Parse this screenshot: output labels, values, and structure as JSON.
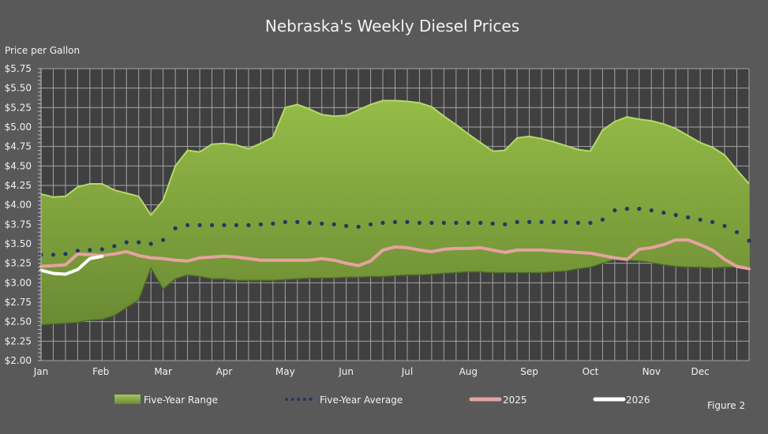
{
  "chart_data": {
    "type": "area",
    "title": "Nebraska's Weekly Diesel Prices",
    "ylabel": "Price per Gallon",
    "xlabel": "",
    "figure_label": "Figure 2",
    "ylim": [
      2.0,
      5.75
    ],
    "ytick_step": 0.25,
    "grid": true,
    "legend_position": "bottom",
    "x_unit": "week",
    "month_ticks": [
      {
        "label": "Jan",
        "week": 1
      },
      {
        "label": "Feb",
        "week": 5.9
      },
      {
        "label": "Mar",
        "week": 11
      },
      {
        "label": "Apr",
        "week": 16
      },
      {
        "label": "May",
        "week": 21
      },
      {
        "label": "Jun",
        "week": 26
      },
      {
        "label": "Jul",
        "week": 31
      },
      {
        "label": "Aug",
        "week": 36
      },
      {
        "label": "Sep",
        "week": 41
      },
      {
        "label": "Oct",
        "week": 46
      },
      {
        "label": "Nov",
        "week": 51
      },
      {
        "label": "Dec",
        "week": 55
      }
    ],
    "series": [
      {
        "name": "Five-Year Range",
        "kind": "range",
        "color": "#86ac3f",
        "high": [
          4.14,
          4.1,
          4.11,
          4.23,
          4.27,
          4.27,
          4.19,
          4.15,
          4.11,
          3.87,
          4.06,
          4.5,
          4.7,
          4.68,
          4.78,
          4.79,
          4.77,
          4.72,
          4.79,
          4.87,
          5.25,
          5.29,
          5.23,
          5.16,
          5.14,
          5.15,
          5.22,
          5.29,
          5.34,
          5.34,
          5.33,
          5.31,
          5.26,
          5.14,
          5.03,
          4.91,
          4.8,
          4.69,
          4.7,
          4.86,
          4.88,
          4.85,
          4.81,
          4.76,
          4.71,
          4.69,
          4.96,
          5.07,
          5.13,
          5.1,
          5.08,
          5.04,
          4.98,
          4.89,
          4.8,
          4.74,
          4.64,
          4.45,
          4.27
        ],
        "low": [
          2.46,
          2.47,
          2.48,
          2.49,
          2.52,
          2.53,
          2.58,
          2.68,
          2.78,
          3.19,
          2.92,
          3.05,
          3.1,
          3.08,
          3.05,
          3.05,
          3.03,
          3.03,
          3.03,
          3.03,
          3.04,
          3.05,
          3.06,
          3.06,
          3.06,
          3.07,
          3.07,
          3.08,
          3.08,
          3.09,
          3.1,
          3.1,
          3.11,
          3.12,
          3.13,
          3.14,
          3.14,
          3.13,
          3.13,
          3.13,
          3.13,
          3.13,
          3.14,
          3.15,
          3.18,
          3.2,
          3.25,
          3.3,
          3.29,
          3.28,
          3.26,
          3.23,
          3.21,
          3.2,
          3.2,
          3.19,
          3.2,
          3.2,
          3.2
        ]
      },
      {
        "name": "Five-Year Average",
        "kind": "dotted",
        "color": "#1f3a5f",
        "values": [
          3.36,
          3.36,
          3.37,
          3.41,
          3.42,
          3.43,
          3.47,
          3.52,
          3.52,
          3.5,
          3.55,
          3.7,
          3.74,
          3.74,
          3.74,
          3.74,
          3.74,
          3.74,
          3.75,
          3.76,
          3.78,
          3.78,
          3.77,
          3.76,
          3.75,
          3.73,
          3.72,
          3.75,
          3.77,
          3.78,
          3.78,
          3.77,
          3.77,
          3.77,
          3.77,
          3.77,
          3.77,
          3.76,
          3.75,
          3.78,
          3.78,
          3.78,
          3.78,
          3.78,
          3.77,
          3.77,
          3.81,
          3.93,
          3.95,
          3.95,
          3.93,
          3.9,
          3.87,
          3.84,
          3.81,
          3.78,
          3.73,
          3.65,
          3.54
        ]
      },
      {
        "name": "2025",
        "kind": "line",
        "color": "#e6a2a0",
        "values": [
          3.21,
          3.22,
          3.23,
          3.37,
          3.36,
          3.35,
          3.37,
          3.4,
          3.35,
          3.32,
          3.31,
          3.29,
          3.28,
          3.32,
          3.33,
          3.34,
          3.33,
          3.31,
          3.29,
          3.29,
          3.29,
          3.29,
          3.29,
          3.31,
          3.29,
          3.25,
          3.22,
          3.28,
          3.42,
          3.46,
          3.45,
          3.42,
          3.4,
          3.43,
          3.44,
          3.44,
          3.45,
          3.42,
          3.39,
          3.42,
          3.42,
          3.42,
          3.41,
          3.4,
          3.39,
          3.38,
          3.35,
          3.32,
          3.3,
          3.43,
          3.45,
          3.49,
          3.55,
          3.55,
          3.49,
          3.42,
          3.3,
          3.21,
          3.18
        ]
      },
      {
        "name": "2026",
        "kind": "line",
        "color": "#ffffff",
        "values": [
          3.16,
          3.12,
          3.11,
          3.17,
          3.31,
          3.34
        ]
      }
    ]
  }
}
